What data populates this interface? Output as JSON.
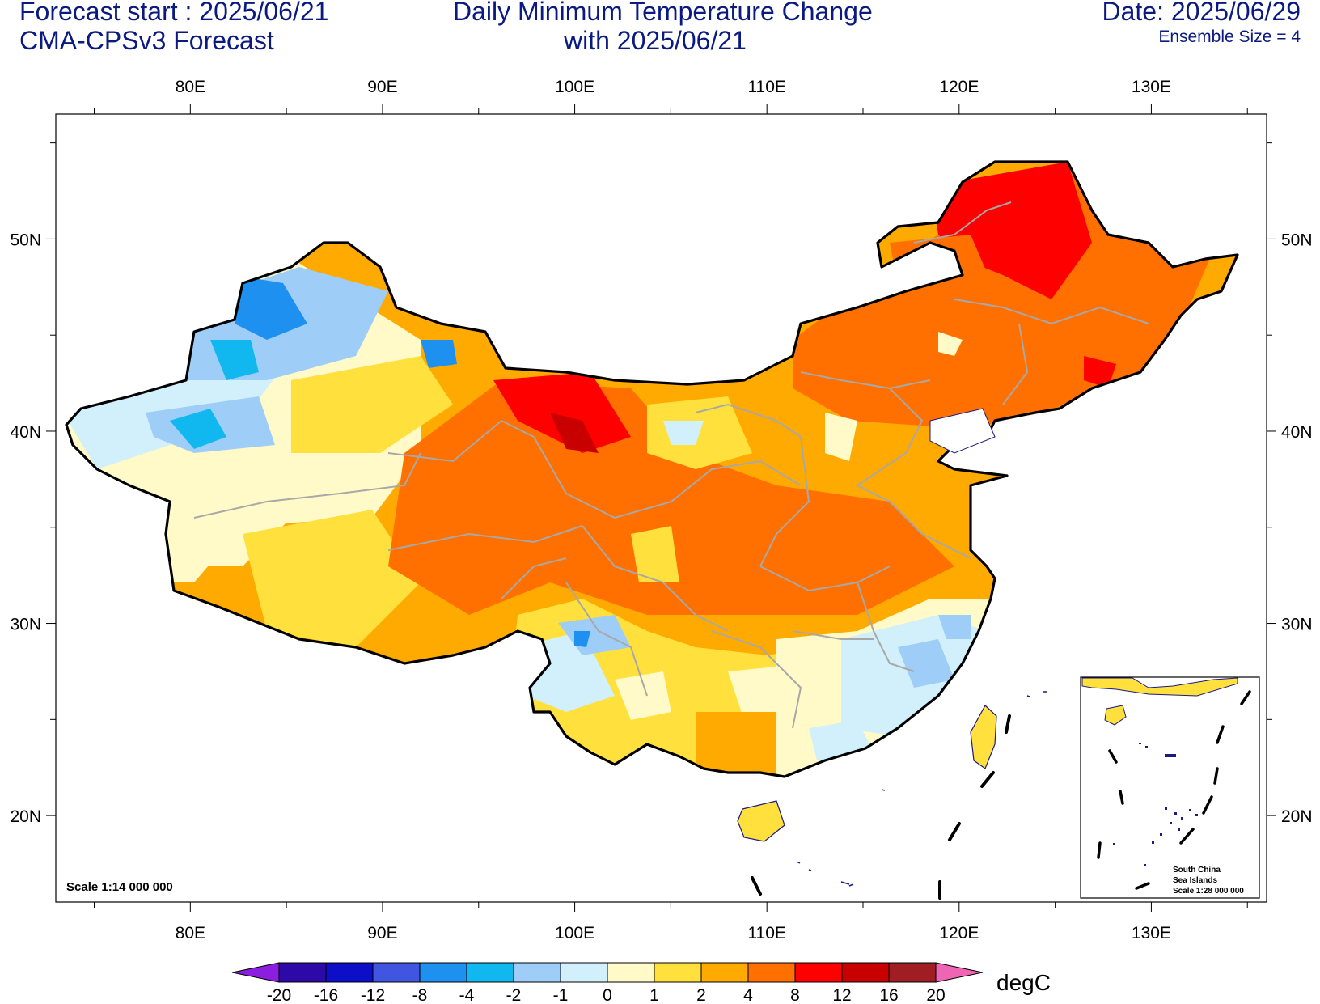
{
  "header": {
    "forecast_start": "Forecast start : 2025/06/21",
    "model": "CMA-CPSv3 Forecast",
    "title_line1": "Daily Minimum Temperature Change",
    "title_line2": "with 2025/06/21",
    "date": "Date: 2025/06/29",
    "ensemble": "Ensemble Size = 4"
  },
  "axes": {
    "lon_labels": [
      "80E",
      "90E",
      "100E",
      "110E",
      "120E",
      "130E"
    ],
    "lat_labels": [
      "50N",
      "40N",
      "30N",
      "20N"
    ],
    "lon_range": [
      73,
      136
    ],
    "lat_range": [
      15.5,
      56.5
    ]
  },
  "map": {
    "scale_label": "Scale 1:14 000 000",
    "inset": {
      "label_line1": "South China",
      "label_line2": "Sea Islands",
      "label_line3": "Scale 1:28 000 000"
    }
  },
  "colorbar": {
    "unit": "degC",
    "ticks": [
      "-20",
      "-16",
      "-12",
      "-8",
      "-4",
      "-2",
      "-1",
      "0",
      "1",
      "2",
      "4",
      "8",
      "12",
      "16",
      "20"
    ],
    "colors": [
      "#2d0aa8",
      "#0c0ec8",
      "#4055e0",
      "#1e90f0",
      "#11b8f0",
      "#9ecdf7",
      "#d2f0fb",
      "#fffac8",
      "#ffe03c",
      "#ffaa00",
      "#ff7000",
      "#ff0000",
      "#c80000",
      "#a01e23"
    ],
    "under_color": "#8c1ee0",
    "over_color": "#f064b4"
  }
}
